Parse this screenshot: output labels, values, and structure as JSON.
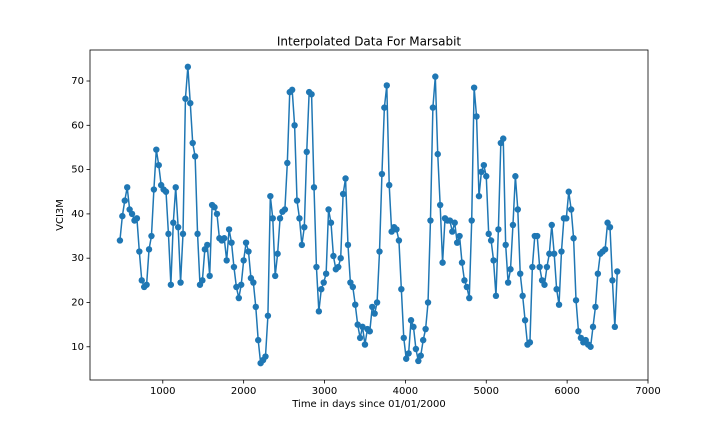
{
  "chart_data": {
    "type": "line",
    "title": "Interpolated Data For Marsabit",
    "x_label": "Time in days since 01/01/2000",
    "y_label": "VCI3M",
    "color": "#1f77b4",
    "markers": true,
    "xlim": [
      100,
      7000
    ],
    "xticks": [
      1000,
      2000,
      3000,
      4000,
      5000,
      6000,
      7000
    ],
    "ylim": [
      2.5,
      77
    ],
    "yticks": [
      10,
      20,
      30,
      40,
      50,
      60,
      70
    ],
    "x": [
      470,
      500,
      530,
      560,
      590,
      620,
      650,
      680,
      710,
      740,
      770,
      800,
      830,
      860,
      890,
      920,
      950,
      980,
      1010,
      1040,
      1070,
      1100,
      1130,
      1160,
      1190,
      1220,
      1250,
      1280,
      1310,
      1340,
      1370,
      1400,
      1430,
      1460,
      1490,
      1520,
      1550,
      1580,
      1610,
      1640,
      1670,
      1700,
      1730,
      1760,
      1790,
      1820,
      1850,
      1880,
      1910,
      1940,
      1970,
      2000,
      2030,
      2060,
      2090,
      2120,
      2150,
      2180,
      2210,
      2240,
      2270,
      2300,
      2330,
      2360,
      2390,
      2420,
      2450,
      2480,
      2510,
      2540,
      2570,
      2600,
      2630,
      2660,
      2690,
      2720,
      2750,
      2780,
      2810,
      2840,
      2870,
      2900,
      2930,
      2960,
      2990,
      3020,
      3050,
      3080,
      3110,
      3140,
      3170,
      3200,
      3230,
      3260,
      3290,
      3320,
      3350,
      3380,
      3410,
      3440,
      3470,
      3500,
      3530,
      3560,
      3590,
      3620,
      3650,
      3680,
      3710,
      3740,
      3770,
      3800,
      3830,
      3860,
      3890,
      3920,
      3950,
      3980,
      4010,
      4040,
      4070,
      4100,
      4130,
      4160,
      4190,
      4220,
      4250,
      4280,
      4310,
      4340,
      4370,
      4400,
      4430,
      4460,
      4490,
      4520,
      4550,
      4580,
      4610,
      4640,
      4670,
      4700,
      4730,
      4760,
      4790,
      4820,
      4850,
      4880,
      4910,
      4940,
      4970,
      5000,
      5030,
      5060,
      5090,
      5120,
      5150,
      5180,
      5210,
      5240,
      5270,
      5300,
      5330,
      5360,
      5390,
      5420,
      5450,
      5480,
      5510,
      5540,
      5570,
      5600,
      5630,
      5660,
      5690,
      5720,
      5750,
      5780,
      5810,
      5840,
      5870,
      5900,
      5930,
      5960,
      5990,
      6020,
      6050,
      6080,
      6110,
      6140,
      6170,
      6200,
      6230,
      6260,
      6290,
      6320,
      6350,
      6380,
      6410,
      6440,
      6470,
      6500,
      6530,
      6560,
      6590,
      6620
    ],
    "values": [
      34,
      39.5,
      43,
      46,
      41,
      40,
      38.5,
      39,
      31.5,
      25,
      23.5,
      24,
      32,
      35,
      45.5,
      54.5,
      51,
      46.5,
      45.5,
      45,
      35.5,
      24,
      38,
      46,
      37,
      24.5,
      35.5,
      66,
      73.2,
      65,
      56,
      53,
      35.5,
      24,
      25,
      32,
      33,
      26,
      42,
      41.5,
      40,
      34.5,
      34,
      34.5,
      29.5,
      36.5,
      33.5,
      28,
      23.5,
      21,
      24,
      29.5,
      33.5,
      31.5,
      25.5,
      24.5,
      19,
      11.5,
      6.3,
      7,
      7.8,
      17,
      44,
      39,
      26,
      31,
      39,
      40.5,
      41,
      51.5,
      67.5,
      68,
      60,
      43,
      39,
      33,
      37,
      54,
      67.5,
      67,
      46,
      28,
      18,
      23,
      24.5,
      26.5,
      41,
      38,
      30.5,
      27.5,
      28,
      30,
      44.5,
      48,
      33,
      24.5,
      23.5,
      19.5,
      15,
      12,
      14.5,
      10.5,
      14,
      13.5,
      19,
      17.5,
      20,
      31.5,
      49,
      64,
      69,
      46.5,
      36,
      37,
      36.5,
      34,
      23,
      12,
      7.3,
      8.5,
      16,
      14.5,
      9.5,
      6.8,
      8,
      11.5,
      14,
      20,
      38.5,
      64,
      71,
      53.5,
      42,
      29,
      39,
      38.5,
      38.5,
      36,
      38,
      33.5,
      35,
      29,
      25,
      23.5,
      21,
      38.5,
      68.5,
      62,
      44,
      49.5,
      51,
      48.5,
      35.5,
      34,
      29.5,
      21.5,
      36.5,
      56,
      57,
      33,
      24.5,
      27.5,
      37.5,
      48.5,
      41,
      26.5,
      21.5,
      16,
      10.5,
      11,
      28,
      35,
      35,
      28,
      25,
      24,
      28,
      31,
      37.5,
      31,
      23,
      19.5,
      31.5,
      39,
      39,
      45,
      41,
      34.5,
      20.5,
      13.5,
      12,
      11,
      11.5,
      10.5,
      10,
      14.5,
      19,
      26.5,
      31,
      31.5,
      32,
      38,
      37,
      25,
      14.5,
      27
    ]
  }
}
